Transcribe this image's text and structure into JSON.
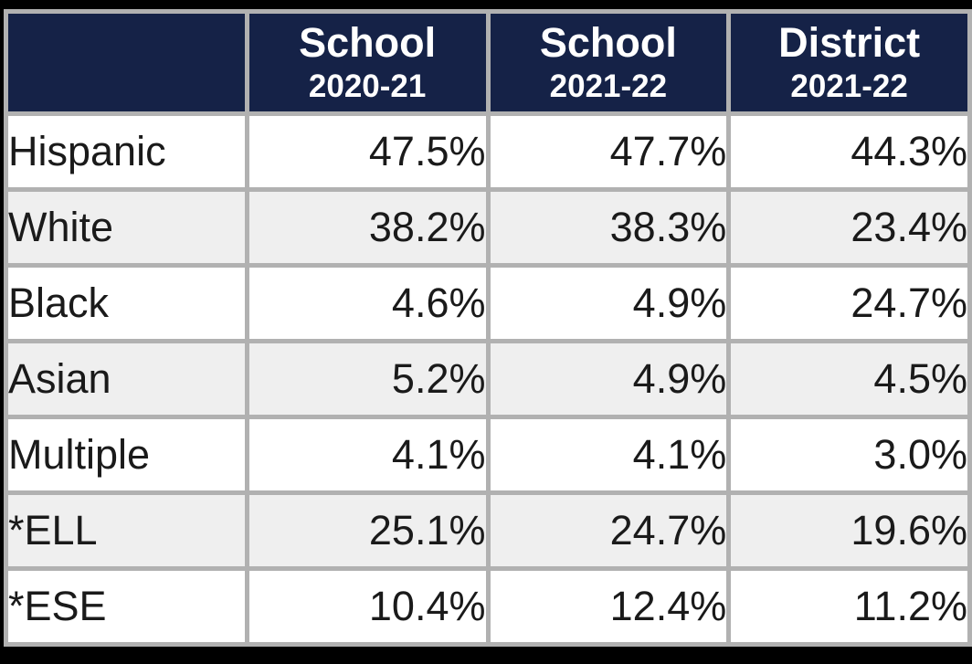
{
  "chart_data": {
    "type": "table",
    "columns": [
      {
        "line1": "",
        "line2": ""
      },
      {
        "line1": "School",
        "line2": "2020-21"
      },
      {
        "line1": "School",
        "line2": "2021-22"
      },
      {
        "line1": "District",
        "line2": "2021-22"
      }
    ],
    "rows": [
      {
        "label": "Hispanic",
        "values": [
          "47.5%",
          "47.7%",
          "44.3%"
        ]
      },
      {
        "label": "White",
        "values": [
          "38.2%",
          "38.3%",
          "23.4%"
        ]
      },
      {
        "label": "Black",
        "values": [
          "4.6%",
          "4.9%",
          "24.7%"
        ]
      },
      {
        "label": "Asian",
        "values": [
          "5.2%",
          "4.9%",
          "4.5%"
        ]
      },
      {
        "label": "Multiple",
        "values": [
          "4.1%",
          "4.1%",
          "3.0%"
        ]
      },
      {
        "label": "*ELL",
        "values": [
          "25.1%",
          "24.7%",
          "19.6%"
        ]
      },
      {
        "label": "*ESE",
        "values": [
          "10.4%",
          "12.4%",
          "11.2%"
        ]
      }
    ]
  },
  "colors": {
    "header_bg": "#152247",
    "header_text": "#ffffff",
    "border": "#b1b1b1",
    "row_odd_bg": "#ffffff",
    "row_even_bg": "#efefef",
    "cell_text": "#1a1a1a",
    "page_bg": "#000000"
  }
}
